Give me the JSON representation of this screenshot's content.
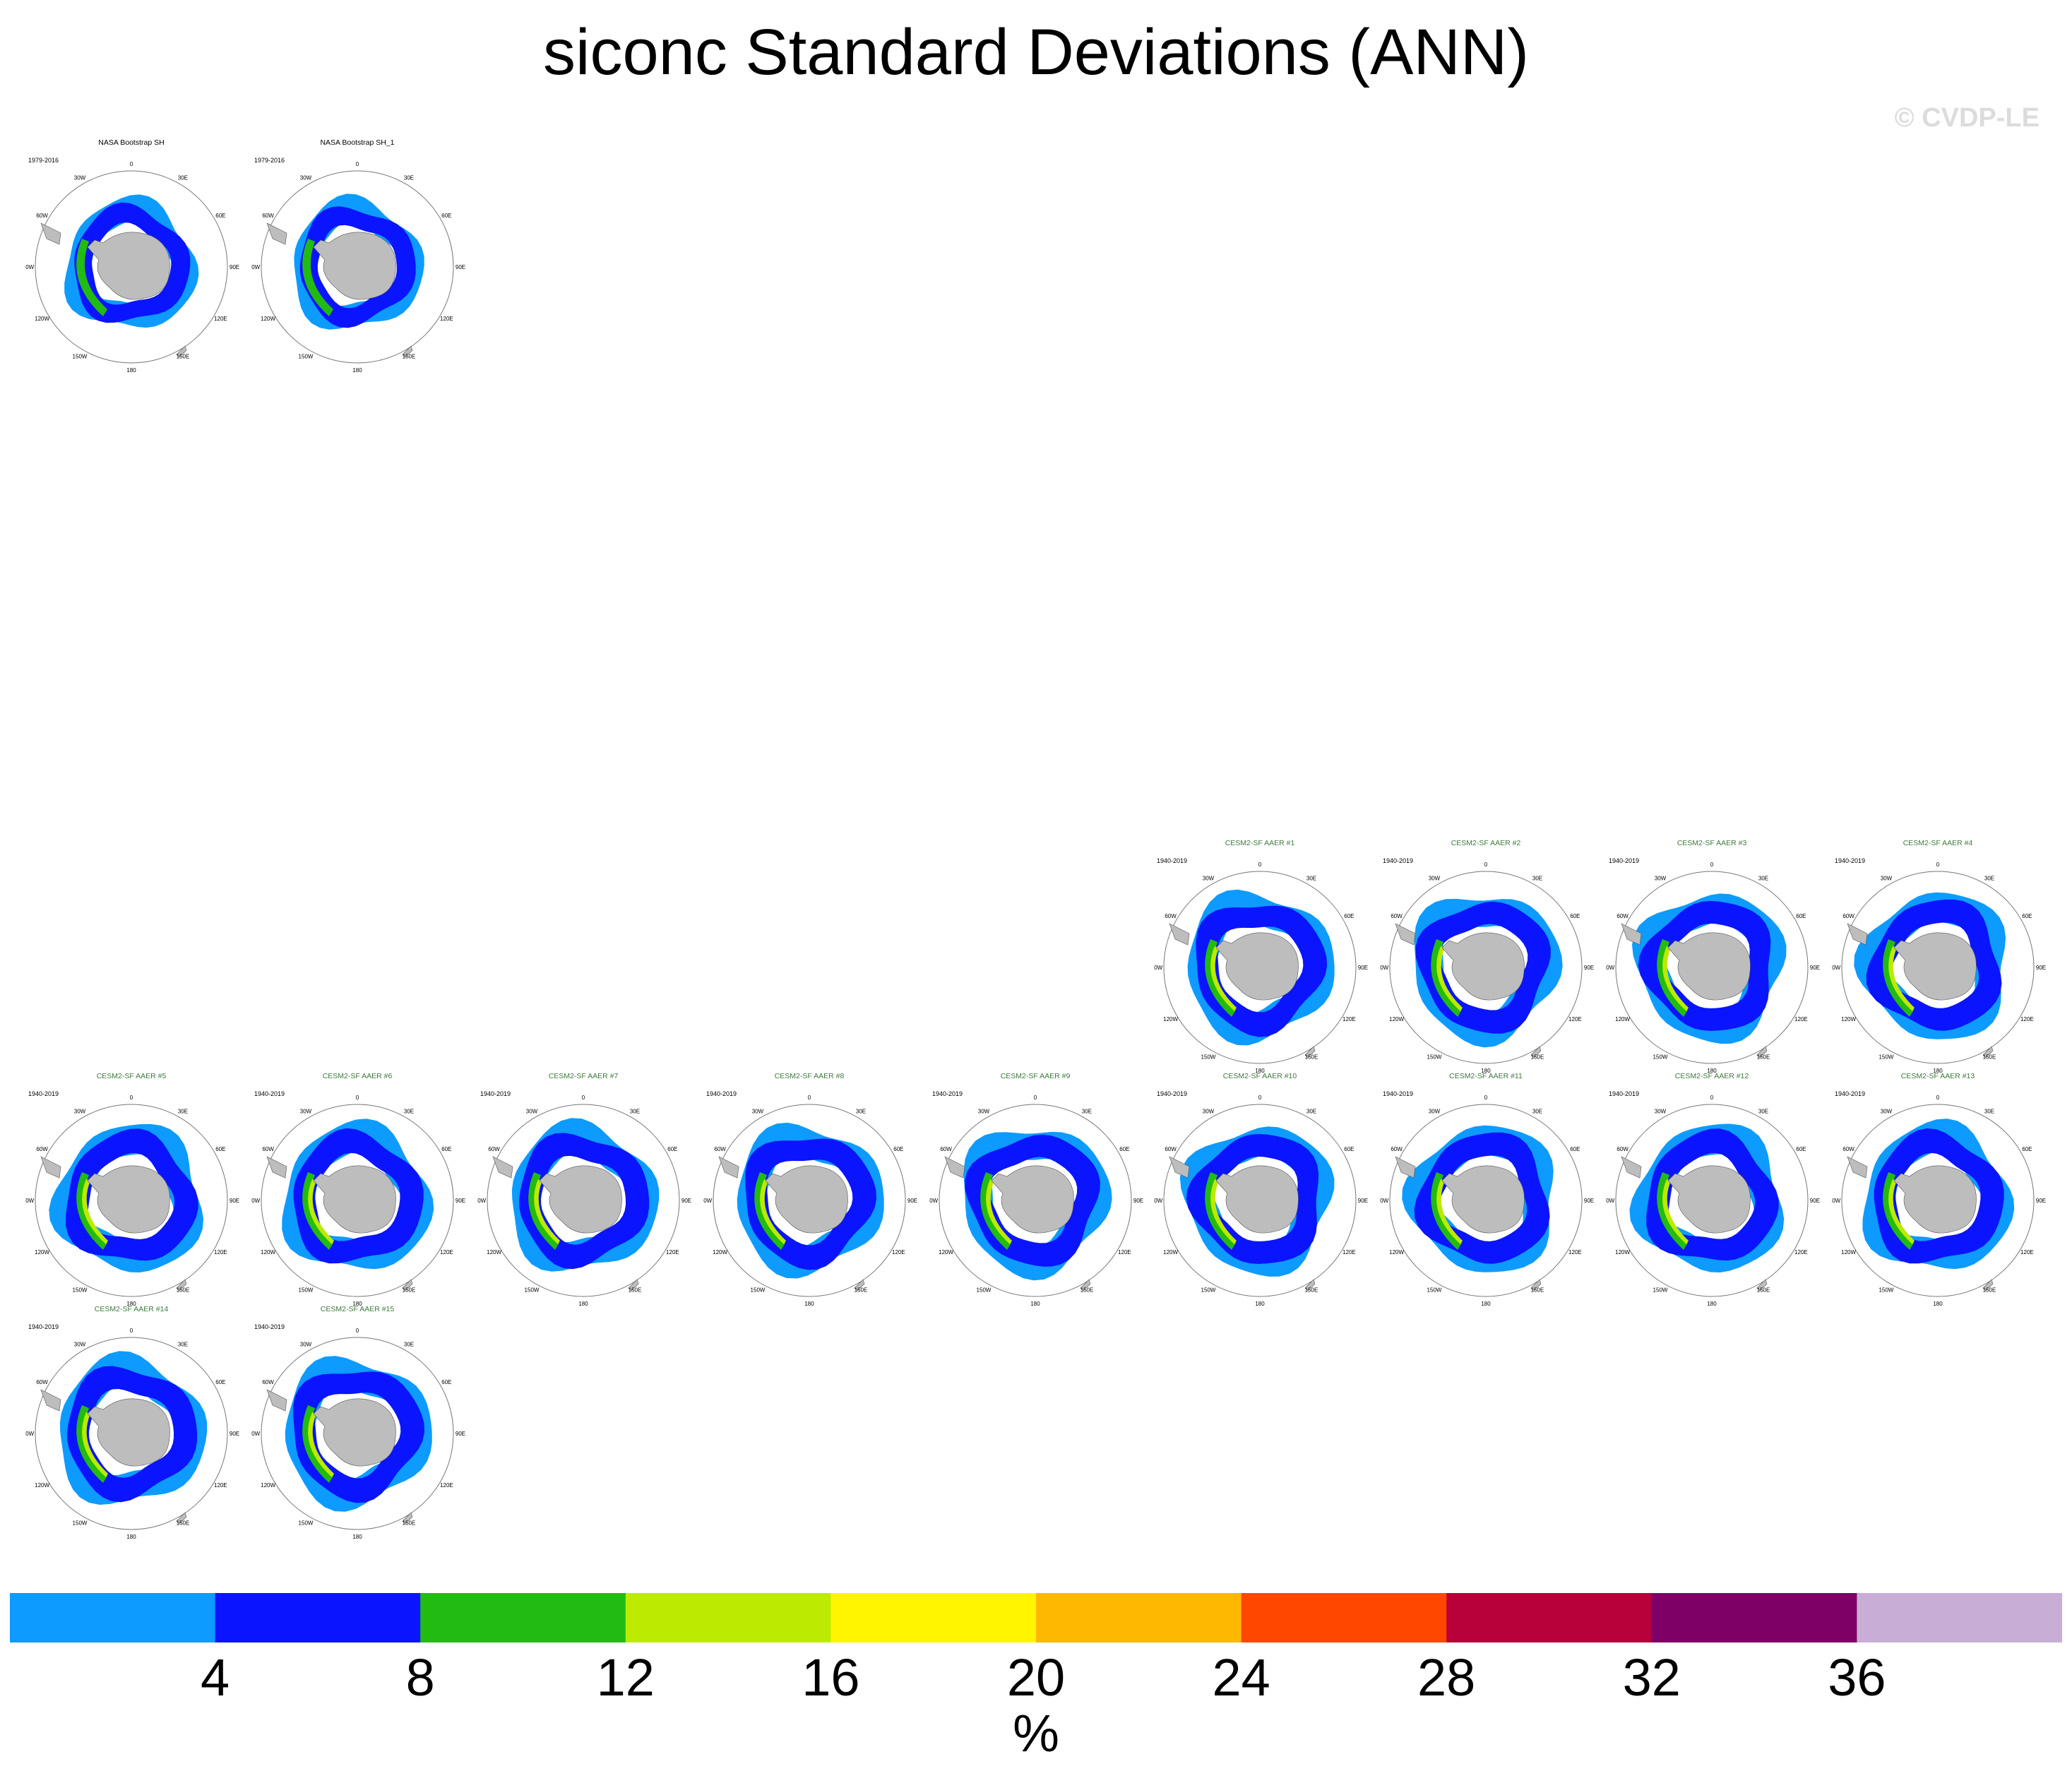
{
  "title": "siconc Standard Deviations (ANN)",
  "watermark": "© CVDP-LE",
  "panels": [
    {
      "title": "NASA Bootstrap SH",
      "period": "1979-2016",
      "title_color": "#000000"
    },
    {
      "title": "NASA Bootstrap SH_1",
      "period": "1979-2016",
      "title_color": "#000000"
    },
    {
      "title": "CESM2-SF AAER #1",
      "period": "1940-2019",
      "title_color": "#3d7a3d"
    },
    {
      "title": "CESM2-SF AAER #2",
      "period": "1940-2019",
      "title_color": "#3d7a3d"
    },
    {
      "title": "CESM2-SF AAER #3",
      "period": "1940-2019",
      "title_color": "#3d7a3d"
    },
    {
      "title": "CESM2-SF AAER #4",
      "period": "1940-2019",
      "title_color": "#3d7a3d"
    },
    {
      "title": "CESM2-SF AAER #5",
      "period": "1940-2019",
      "title_color": "#3d7a3d"
    },
    {
      "title": "CESM2-SF AAER #6",
      "period": "1940-2019",
      "title_color": "#3d7a3d"
    },
    {
      "title": "CESM2-SF AAER #7",
      "period": "1940-2019",
      "title_color": "#3d7a3d"
    },
    {
      "title": "CESM2-SF AAER #8",
      "period": "1940-2019",
      "title_color": "#3d7a3d"
    },
    {
      "title": "CESM2-SF AAER #9",
      "period": "1940-2019",
      "title_color": "#3d7a3d"
    },
    {
      "title": "CESM2-SF AAER #10",
      "period": "1940-2019",
      "title_color": "#3d7a3d"
    },
    {
      "title": "CESM2-SF AAER #11",
      "period": "1940-2019",
      "title_color": "#3d7a3d"
    },
    {
      "title": "CESM2-SF AAER #12",
      "period": "1940-2019",
      "title_color": "#3d7a3d"
    },
    {
      "title": "CESM2-SF AAER #13",
      "period": "1940-2019",
      "title_color": "#3d7a3d"
    },
    {
      "title": "CESM2-SF AAER #14",
      "period": "1940-2019",
      "title_color": "#3d7a3d"
    },
    {
      "title": "CESM2-SF AAER #15",
      "period": "1940-2019",
      "title_color": "#3d7a3d"
    }
  ],
  "map_labels": [
    "0",
    "30E",
    "60E",
    "90E",
    "120E",
    "150E",
    "180",
    "150W",
    "120W",
    "90W",
    "60W",
    "30W"
  ],
  "colorbar": {
    "colors": [
      "#0d9bff",
      "#0a14ff",
      "#22bb12",
      "#bcea00",
      "#fff500",
      "#ffb800",
      "#ff4700",
      "#b8003a",
      "#7e0066",
      "#c8aed6"
    ],
    "ticks": [
      "4",
      "8",
      "12",
      "16",
      "20",
      "24",
      "28",
      "32",
      "36"
    ],
    "units": "%"
  }
}
